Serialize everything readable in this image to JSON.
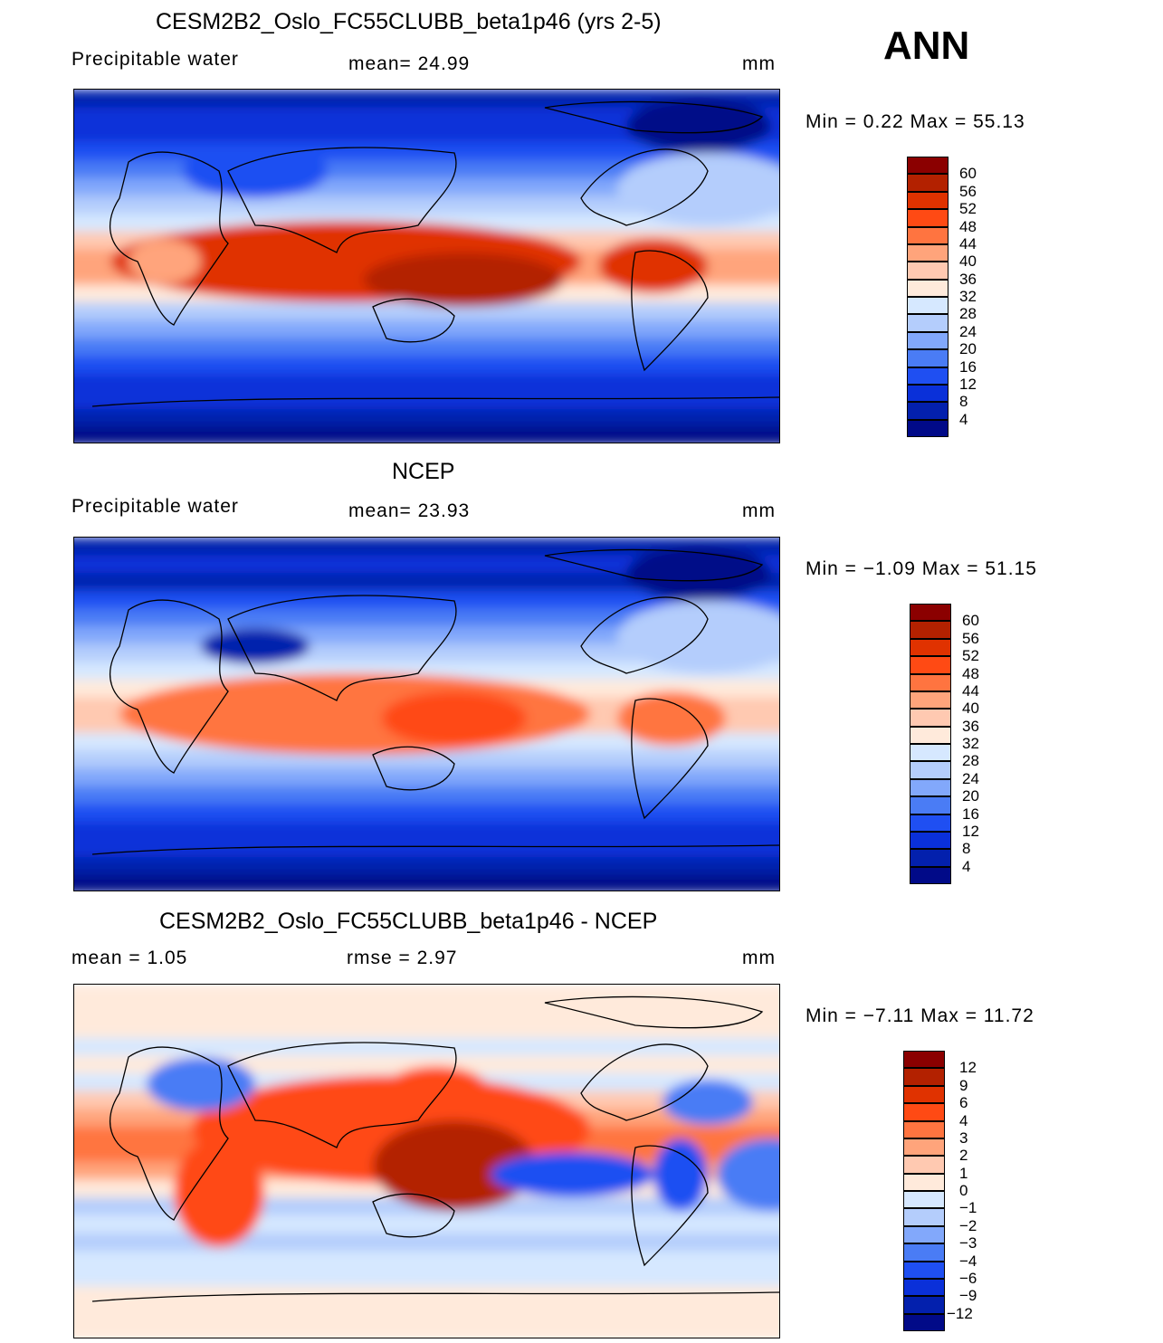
{
  "header": {
    "season": "ANN"
  },
  "colors": [
    "#8b0000",
    "#b32100",
    "#e03200",
    "#ff4a14",
    "#ff7440",
    "#ffa47b",
    "#ffc9b1",
    "#ffeadb",
    "#d6e8ff",
    "#b4cdfc",
    "#82a8fb",
    "#4a7cf5",
    "#1f4ff2",
    "#0a30d9",
    "#0320ad",
    "#010a88"
  ],
  "panels": [
    {
      "title": "CESM2B2_Oslo_FC55CLUBB_beta1p46 (yrs 2-5)",
      "left_label": "Precipitable  water",
      "center_label": "mean=   24.99",
      "units": "mm",
      "minmax": "Min  =     0.22  Max  =    55.13",
      "levels": [
        "60",
        "56",
        "52",
        "48",
        "44",
        "40",
        "36",
        "32",
        "28",
        "24",
        "20",
        "16",
        "12",
        "8",
        "4"
      ]
    },
    {
      "title": "NCEP",
      "left_label": "Precipitable  water",
      "center_label": "mean=   23.93",
      "units": "mm",
      "minmax": "Min  =   −1.09  Max  =    51.15",
      "levels": [
        "60",
        "56",
        "52",
        "48",
        "44",
        "40",
        "36",
        "32",
        "28",
        "24",
        "20",
        "16",
        "12",
        "8",
        "4"
      ]
    },
    {
      "title": "CESM2B2_Oslo_FC55CLUBB_beta1p46 - NCEP",
      "left_label": "mean  =     1.05",
      "center_label": "rmse  =     2.97",
      "units": "mm",
      "minmax": "Min  =   −7.11  Max  =    11.72",
      "levels": [
        "12",
        "9",
        "6",
        "4",
        "3",
        "2",
        "1",
        "0",
        "−1",
        "−2",
        "−3",
        "−4",
        "−6",
        "−9",
        "−12"
      ]
    }
  ]
}
